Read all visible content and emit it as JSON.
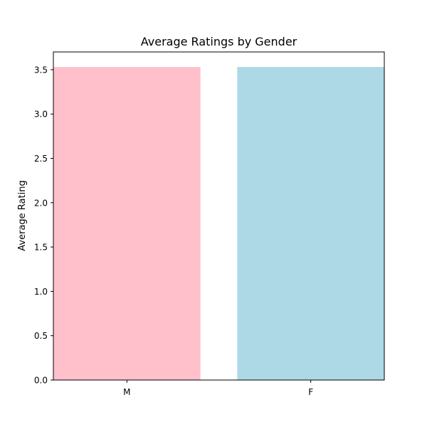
{
  "chart_data": {
    "type": "bar",
    "title": "Average Ratings by Gender",
    "xlabel": "",
    "ylabel": "Average Rating",
    "categories": [
      "M",
      "F"
    ],
    "values": [
      3.53,
      3.53
    ],
    "colors": [
      "#ffc0cb",
      "#add8e6"
    ],
    "ylim": [
      0,
      3.7
    ],
    "yticks": [
      0.0,
      0.5,
      1.0,
      1.5,
      2.0,
      2.5,
      3.0,
      3.5
    ],
    "ytick_labels": [
      "0.0",
      "0.5",
      "1.0",
      "1.5",
      "2.0",
      "2.5",
      "3.0",
      "3.5"
    ],
    "grid": false,
    "legend": false
  }
}
